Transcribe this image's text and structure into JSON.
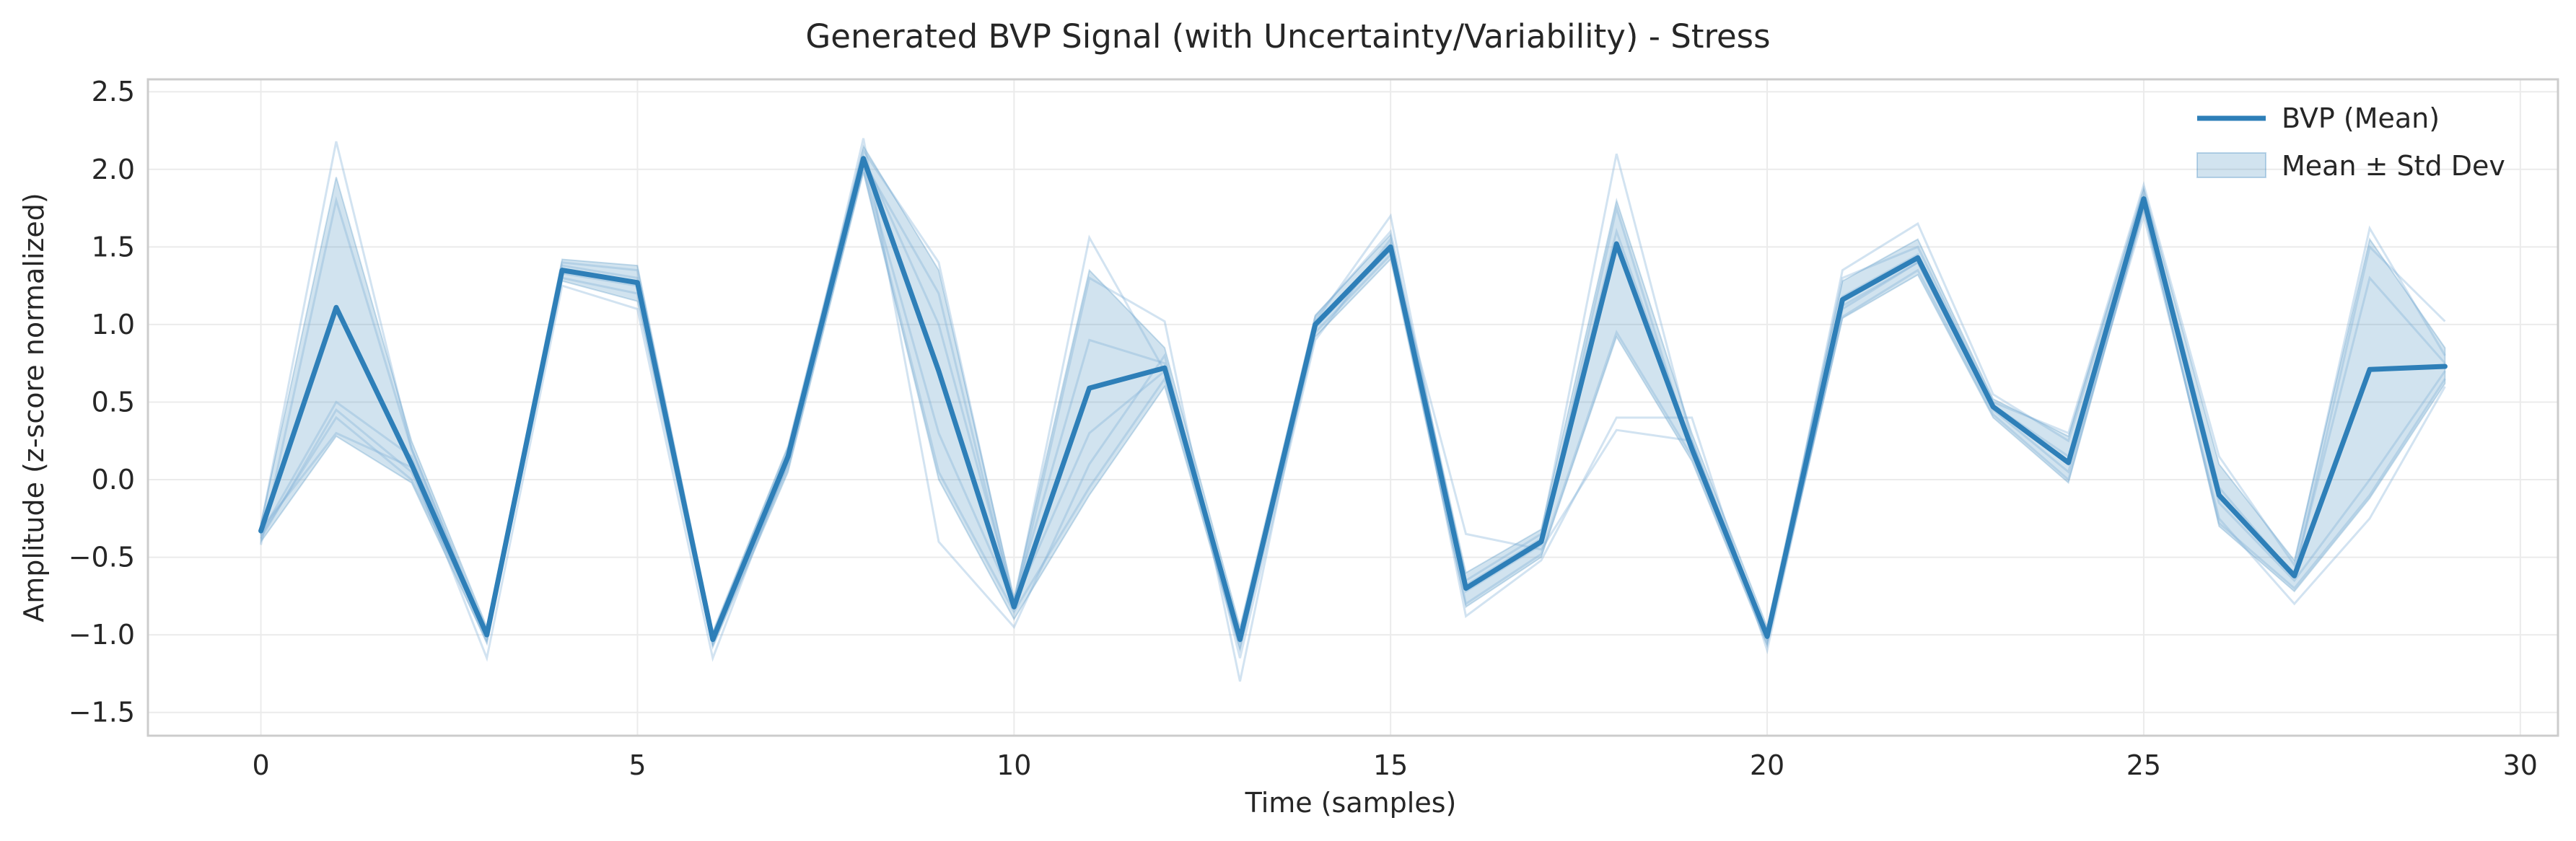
{
  "chart_data": {
    "type": "line",
    "title": "Generated BVP Signal (with Uncertainty/Variability) - Stress",
    "xlabel": "Time (samples)",
    "ylabel": "Amplitude (z-score normalized)",
    "xlim": [
      -1.5,
      30.5
    ],
    "ylim": [
      -1.65,
      2.58
    ],
    "xticks": [
      0,
      5,
      10,
      15,
      20,
      25,
      30
    ],
    "xtick_labels": [
      "0",
      "5",
      "10",
      "15",
      "20",
      "25",
      "30"
    ],
    "yticks": [
      -1.5,
      -1.0,
      -0.5,
      0.0,
      0.5,
      1.0,
      1.5,
      2.0,
      2.5
    ],
    "ytick_labels": [
      "−1.5",
      "−1.0",
      "−0.5",
      "0.0",
      "0.5",
      "1.0",
      "1.5",
      "2.0",
      "2.5"
    ],
    "grid": true,
    "legend_position": "top-right",
    "colors": {
      "mean": "#2e7fb8",
      "band": "#2e7fb8",
      "samples": "#7fb0d6"
    },
    "x": [
      0,
      1,
      2,
      3,
      4,
      5,
      6,
      7,
      8,
      9,
      10,
      11,
      12,
      13,
      14,
      15,
      16,
      17,
      18,
      19,
      20,
      21,
      22,
      23,
      24,
      25,
      26,
      27,
      28,
      29
    ],
    "series": [
      {
        "name": "BVP (Mean)",
        "values": [
          -0.33,
          1.11,
          0.1,
          -1.0,
          1.35,
          1.27,
          -1.03,
          0.15,
          2.07,
          0.7,
          -0.82,
          0.59,
          0.72,
          -1.03,
          1.0,
          1.5,
          -0.7,
          -0.4,
          1.52,
          0.2,
          -1.01,
          1.16,
          1.43,
          0.47,
          0.11,
          1.81,
          -0.1,
          -0.62,
          0.71,
          0.73
        ]
      },
      {
        "name": "Mean ± Std Dev",
        "kind": "band",
        "upper": [
          -0.28,
          1.95,
          0.25,
          -0.95,
          1.42,
          1.38,
          -0.98,
          0.22,
          2.15,
          1.35,
          -0.76,
          1.35,
          0.85,
          -0.95,
          1.06,
          1.58,
          -0.6,
          -0.32,
          1.8,
          0.3,
          -0.95,
          1.28,
          1.55,
          0.52,
          0.28,
          1.88,
          0.1,
          -0.52,
          1.55,
          0.85
        ],
        "lower": [
          -0.4,
          0.28,
          -0.02,
          -1.05,
          1.28,
          1.15,
          -1.08,
          0.05,
          1.98,
          0.0,
          -0.9,
          -0.1,
          0.6,
          -1.1,
          0.92,
          1.42,
          -0.82,
          -0.5,
          0.92,
          0.12,
          -1.07,
          1.04,
          1.32,
          0.4,
          -0.02,
          1.74,
          -0.3,
          -0.72,
          -0.12,
          0.62
        ]
      }
    ],
    "sample_traces": [
      [
        -0.3,
        2.18,
        0.2,
        -0.98,
        1.4,
        1.35,
        -1.0,
        0.2,
        2.12,
        1.4,
        -0.8,
        1.56,
        0.7,
        -1.0,
        1.05,
        1.6,
        -0.65,
        -0.35,
        2.1,
        0.25,
        -1.0,
        1.3,
        1.5,
        0.5,
        0.3,
        1.9,
        0.15,
        -0.55,
        1.62,
        0.8
      ],
      [
        -0.38,
        0.45,
        0.05,
        -1.05,
        1.3,
        1.2,
        -1.06,
        0.1,
        2.0,
        0.05,
        -0.85,
        -0.05,
        0.65,
        -1.08,
        0.95,
        1.45,
        -0.8,
        -0.48,
        0.95,
        0.15,
        -1.05,
        1.05,
        1.35,
        0.42,
        0.0,
        1.75,
        -0.28,
        -0.7,
        -0.1,
        0.65
      ],
      [
        -0.35,
        0.5,
        0.15,
        -1.0,
        1.38,
        1.3,
        -1.04,
        0.18,
        2.05,
        1.2,
        -0.82,
        1.3,
        1.02,
        -1.3,
        1.02,
        1.7,
        -0.72,
        -0.42,
        1.75,
        0.18,
        -1.02,
        1.35,
        1.65,
        0.55,
        0.25,
        1.85,
        -0.05,
        -0.62,
        1.5,
        1.02
      ],
      [
        -0.32,
        0.3,
        0.08,
        -1.15,
        1.25,
        1.1,
        -1.15,
        0.12,
        2.2,
        -0.4,
        -0.95,
        0.1,
        0.8,
        -1.15,
        0.9,
        1.55,
        -0.88,
        -0.52,
        0.4,
        0.4,
        -1.1,
        1.1,
        1.4,
        0.45,
        0.05,
        1.7,
        -0.25,
        -0.8,
        -0.25,
        0.6
      ],
      [
        -0.42,
        1.8,
        0.2,
        -1.02,
        1.35,
        1.28,
        -1.02,
        0.16,
        2.08,
        1.0,
        -0.78,
        0.9,
        0.75,
        -1.02,
        1.0,
        1.52,
        -0.68,
        -0.38,
        1.6,
        0.22,
        -1.0,
        1.18,
        1.45,
        0.48,
        0.15,
        1.82,
        -0.12,
        -0.6,
        1.3,
        0.75
      ],
      [
        -0.36,
        0.4,
        0.0,
        -0.98,
        1.33,
        1.25,
        -1.05,
        0.08,
        2.02,
        0.3,
        -0.8,
        0.3,
        0.7,
        -1.05,
        0.98,
        1.48,
        -0.35,
        -0.45,
        0.32,
        0.25,
        -1.03,
        1.12,
        1.4,
        0.46,
        0.1,
        1.8,
        -0.15,
        -0.65,
        0.0,
        0.7
      ]
    ]
  }
}
